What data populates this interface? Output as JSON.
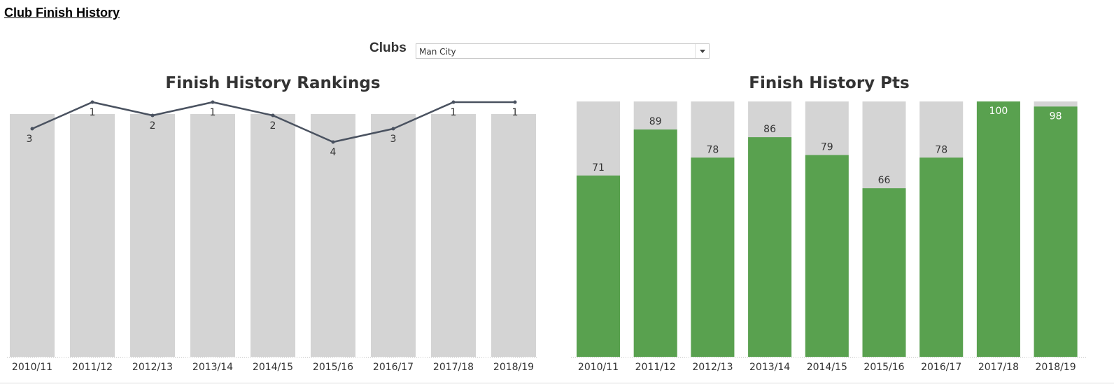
{
  "page": {
    "title": "Club Finish History"
  },
  "filter": {
    "label": "Clubs",
    "selected": "Man City"
  },
  "colors": {
    "background_bar": "#d4d4d4",
    "line": "#4a5260",
    "points_bar": "#59a14f",
    "text": "#333333"
  },
  "chart_data": [
    {
      "type": "line",
      "title": "Finish History Rankings",
      "categories": [
        "2010/11",
        "2011/12",
        "2012/13",
        "2013/14",
        "2014/15",
        "2015/16",
        "2016/17",
        "2017/18",
        "2018/19"
      ],
      "series": [
        {
          "values": [
            3,
            1,
            2,
            1,
            2,
            4,
            3,
            1,
            1
          ]
        }
      ],
      "y_reversed": true,
      "ylim": [
        1,
        20
      ],
      "background_bars": true,
      "grid": false
    },
    {
      "type": "bar",
      "title": "Finish History Pts",
      "categories": [
        "2010/11",
        "2011/12",
        "2012/13",
        "2013/14",
        "2014/15",
        "2015/16",
        "2016/17",
        "2017/18",
        "2018/19"
      ],
      "values": [
        71,
        89,
        78,
        86,
        79,
        66,
        78,
        100,
        98
      ],
      "ylim": [
        0,
        100
      ],
      "background_bars": true,
      "grid": false
    }
  ]
}
